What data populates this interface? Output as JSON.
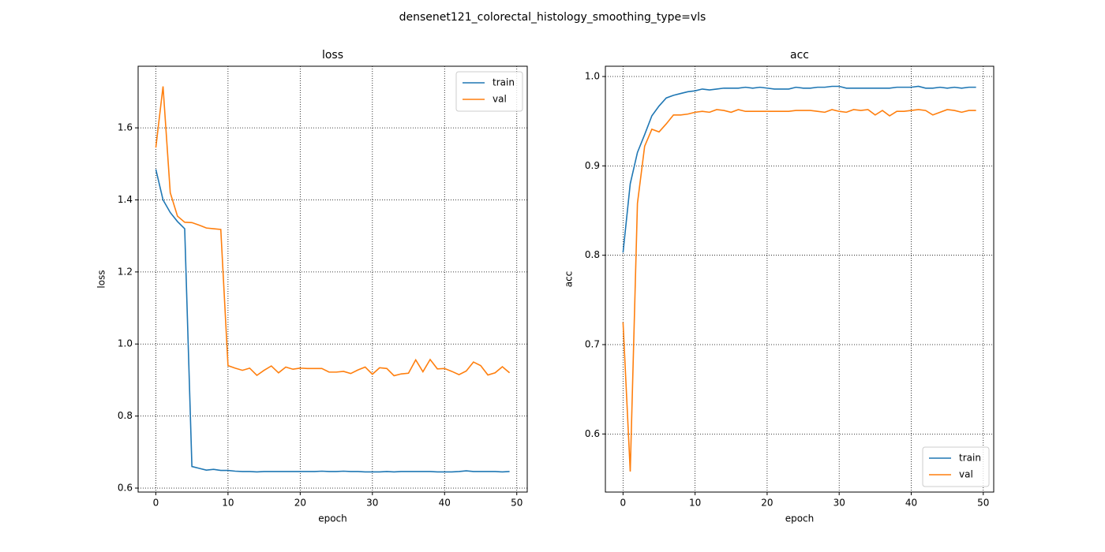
{
  "title": "densenet121_colorectal_histology_smoothing_type=vls",
  "chart_data": [
    {
      "type": "line",
      "title": "loss",
      "xlabel": "epoch",
      "ylabel": "loss",
      "x": [
        0,
        1,
        2,
        3,
        4,
        5,
        6,
        7,
        8,
        9,
        10,
        11,
        12,
        13,
        14,
        15,
        16,
        17,
        18,
        19,
        20,
        21,
        22,
        23,
        24,
        25,
        26,
        27,
        28,
        29,
        30,
        31,
        32,
        33,
        34,
        35,
        36,
        37,
        38,
        39,
        40,
        41,
        42,
        43,
        44,
        45,
        46,
        47,
        48,
        49
      ],
      "series": [
        {
          "name": "train",
          "color": "#1f77b4",
          "values": [
            1.485,
            1.4,
            1.365,
            1.34,
            1.32,
            0.66,
            0.655,
            0.65,
            0.652,
            0.649,
            0.649,
            0.647,
            0.646,
            0.646,
            0.645,
            0.646,
            0.646,
            0.646,
            0.646,
            0.646,
            0.646,
            0.646,
            0.646,
            0.647,
            0.646,
            0.646,
            0.647,
            0.646,
            0.646,
            0.645,
            0.645,
            0.645,
            0.646,
            0.645,
            0.646,
            0.646,
            0.646,
            0.646,
            0.646,
            0.645,
            0.645,
            0.645,
            0.646,
            0.648,
            0.646,
            0.646,
            0.646,
            0.646,
            0.645,
            0.646
          ]
        },
        {
          "name": "val",
          "color": "#ff7f0e",
          "values": [
            1.545,
            1.715,
            1.42,
            1.355,
            1.338,
            1.337,
            1.33,
            1.322,
            1.32,
            1.318,
            0.94,
            0.933,
            0.927,
            0.933,
            0.913,
            0.927,
            0.939,
            0.92,
            0.936,
            0.93,
            0.933,
            0.932,
            0.932,
            0.932,
            0.922,
            0.922,
            0.924,
            0.918,
            0.928,
            0.936,
            0.916,
            0.934,
            0.932,
            0.912,
            0.917,
            0.919,
            0.956,
            0.923,
            0.957,
            0.931,
            0.932,
            0.924,
            0.915,
            0.925,
            0.95,
            0.94,
            0.914,
            0.92,
            0.937,
            0.92
          ]
        }
      ],
      "xlim": [
        -2.45,
        51.45
      ],
      "xticks": [
        0,
        10,
        20,
        30,
        40,
        50
      ],
      "ylim": [
        0.589,
        1.771
      ],
      "yticks": [
        0.6,
        0.8,
        {
          "value": 1,
          "label": "1.0"
        },
        1.2,
        1.4,
        1.6
      ],
      "grid": true,
      "legend": "upper right"
    },
    {
      "type": "line",
      "title": "acc",
      "xlabel": "epoch",
      "ylabel": "acc",
      "x": [
        0,
        1,
        2,
        3,
        4,
        5,
        6,
        7,
        8,
        9,
        10,
        11,
        12,
        13,
        14,
        15,
        16,
        17,
        18,
        19,
        20,
        21,
        22,
        23,
        24,
        25,
        26,
        27,
        28,
        29,
        30,
        31,
        32,
        33,
        34,
        35,
        36,
        37,
        38,
        39,
        40,
        41,
        42,
        43,
        44,
        45,
        46,
        47,
        48,
        49
      ],
      "series": [
        {
          "name": "train",
          "color": "#1f77b4",
          "values": [
            0.803,
            0.88,
            0.915,
            0.935,
            0.956,
            0.967,
            0.976,
            0.979,
            0.981,
            0.983,
            0.984,
            0.986,
            0.985,
            0.986,
            0.987,
            0.987,
            0.987,
            0.988,
            0.987,
            0.988,
            0.987,
            0.986,
            0.986,
            0.986,
            0.988,
            0.987,
            0.987,
            0.988,
            0.988,
            0.989,
            0.989,
            0.987,
            0.987,
            0.987,
            0.987,
            0.987,
            0.987,
            0.987,
            0.988,
            0.988,
            0.988,
            0.989,
            0.987,
            0.987,
            0.988,
            0.987,
            0.988,
            0.987,
            0.988,
            0.988
          ]
        },
        {
          "name": "val",
          "color": "#ff7f0e",
          "values": [
            0.725,
            0.558,
            0.858,
            0.922,
            0.941,
            0.938,
            0.947,
            0.957,
            0.957,
            0.958,
            0.96,
            0.961,
            0.96,
            0.963,
            0.962,
            0.96,
            0.963,
            0.961,
            0.961,
            0.961,
            0.961,
            0.961,
            0.961,
            0.961,
            0.962,
            0.962,
            0.962,
            0.961,
            0.96,
            0.963,
            0.961,
            0.96,
            0.963,
            0.962,
            0.963,
            0.957,
            0.962,
            0.956,
            0.961,
            0.961,
            0.962,
            0.963,
            0.962,
            0.957,
            0.96,
            0.963,
            0.962,
            0.96,
            0.962,
            0.962
          ]
        }
      ],
      "xlim": [
        -2.45,
        51.45
      ],
      "xticks": [
        0,
        10,
        20,
        30,
        40,
        50
      ],
      "ylim": [
        0.535,
        1.0115
      ],
      "yticks": [
        0.6,
        0.7,
        0.8,
        0.9,
        {
          "value": 1,
          "label": "1.0"
        }
      ],
      "grid": true,
      "legend": "lower right"
    }
  ]
}
